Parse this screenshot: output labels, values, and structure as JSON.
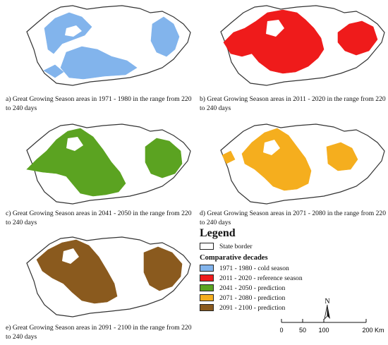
{
  "maps": [
    {
      "id": "a",
      "caption": "a) Great Growing Season areas in 1971 - 1980 in the range from 220 to 240 days",
      "color": "#82B4EC"
    },
    {
      "id": "b",
      "caption": "b) Great Growing Season areas in 2011 - 2020 in the range from 220 to 240 days",
      "color": "#EF1B1B"
    },
    {
      "id": "c",
      "caption": "c) Great Growing Season areas in 2041 - 2050 in the range from 220 to 240 days",
      "color": "#5BA321"
    },
    {
      "id": "d",
      "caption": "d) Great Growing Season areas in 2071 - 2080 in the range from 220 to 240 days",
      "color": "#F5AE1E"
    },
    {
      "id": "e",
      "caption": "e) Great Growing Season areas in 2091 - 2100 in the range from 220 to 240 days",
      "color": "#8A5A1E"
    }
  ],
  "legend": {
    "title": "Legend",
    "border_label": "State border",
    "section_title": "Comparative decades",
    "items": [
      {
        "label": "1971 - 1980 - cold season",
        "color": "#82B4EC"
      },
      {
        "label": "2011 - 2020 - reference season",
        "color": "#EF1B1B"
      },
      {
        "label": "2041 - 2050 - prediction",
        "color": "#5BA321"
      },
      {
        "label": "2071 - 2080 - prediction",
        "color": "#F5AE1E"
      },
      {
        "label": "2091 - 2100 - prediction",
        "color": "#8A5A1E"
      }
    ]
  },
  "north_arrow": "N",
  "scale": {
    "ticks": [
      "0",
      "50",
      "100",
      "200 Km"
    ]
  },
  "icons": [
    "north-arrow-icon",
    "scale-bar-icon"
  ]
}
